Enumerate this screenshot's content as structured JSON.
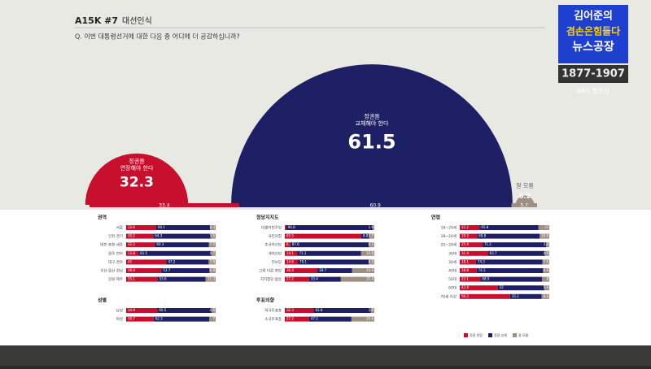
{
  "header": {
    "code": "A15K #7",
    "topic": "대선인식",
    "question": "Q. 이번 대통령선거에 대한 다음 중 어디에 더 공감하십니까?"
  },
  "logo": {
    "line1": "김어준의",
    "line2": "겸손은힘들다",
    "line3": "뉴스공장",
    "phone": "1877-1907",
    "method": "ARS 웹조사"
  },
  "chart_data": {
    "type": "semicircle",
    "categories": [
      "정권을\n연장해야 한다",
      "정권을\n교체해야 한다",
      "잘 모름"
    ],
    "values": [
      32.3,
      61.5,
      6.2
    ],
    "colors": [
      "#c8102e",
      "#1f1f66",
      "#9e8e84"
    ],
    "base_values": [
      33.4,
      60.9,
      5.7
    ]
  },
  "breakdown": {
    "legend": [
      "정권 연장",
      "정권 교체",
      "잘 모름"
    ],
    "groups": [
      {
        "title": "권역",
        "rows": [
          {
            "label": "서울",
            "values": [
              33.6,
              60.1,
              6.3
            ]
          },
          {
            "label": "인천·경기",
            "values": [
              30.2,
              64.3,
              5.5
            ]
          },
          {
            "label": "대전·충청·세종",
            "values": [
              32.2,
              60.3,
              7.5
            ]
          },
          {
            "label": "광주·전라",
            "values": [
              13.8,
              81.5,
              4.7
            ]
          },
          {
            "label": "대구·경북",
            "values": [
              45.0,
              47.2,
              7.8
            ]
          },
          {
            "label": "부산·울산·경남",
            "values": [
              39.4,
              53.7,
              6.9
            ]
          },
          {
            "label": "강원·제주",
            "values": [
              35.1,
              53.6,
              11.3
            ]
          }
        ]
      },
      {
        "title": "성별",
        "rows": [
          {
            "label": "남성",
            "values": [
              34.9,
              60.5,
              4.6
            ]
          },
          {
            "label": "여성",
            "values": [
              30.7,
              62.3,
              7.0
            ]
          }
        ]
      },
      {
        "title": "정당지지도",
        "rows": [
          {
            "label": "더불어민주당",
            "values": [
              1.6,
              96.8,
              1.6
            ]
          },
          {
            "label": "국민의힘",
            "values": [
              85.5,
              8.8,
              5.7
            ]
          },
          {
            "label": "조국혁신당",
            "values": [
              6.1,
              87.6,
              6.3
            ]
          },
          {
            "label": "개혁신당",
            "values": [
              14.1,
              71.1,
              14.8
            ]
          },
          {
            "label": "진보당",
            "values": [
              14.6,
              79.1,
              6.3
            ]
          },
          {
            "label": "그외 다른 정당",
            "values": [
              36.4,
              38.7,
              24.9
            ]
          },
          {
            "label": "지지정당 없음",
            "values": [
              27.2,
              35.4,
              37.4
            ]
          }
        ]
      },
      {
        "title": "투표의향",
        "rows": [
          {
            "label": "적극투표층",
            "values": [
              32.3,
              63.8,
              3.9
            ]
          },
          {
            "label": "소극투표층",
            "values": [
              27.2,
              47.2,
              25.6
            ]
          }
        ]
      },
      {
        "title": "연령",
        "rows": [
          {
            "label": "18~29세",
            "values": [
              22.2,
              65.8,
              12.0
            ]
          },
          {
            "label": "18~24세",
            "values": [
              19.3,
              69.8,
              10.9
            ]
          },
          {
            "label": "25~29세",
            "values": [
              25.4,
              71.2,
              3.4
            ]
          },
          {
            "label": "30대",
            "values": [
              31.4,
              63.7,
              4.9
            ]
          },
          {
            "label": "30세",
            "values": [
              18.1,
              74.3,
              7.6
            ]
          },
          {
            "label": "40대",
            "values": [
              18.8,
              74.3,
              6.9
            ]
          },
          {
            "label": "50대",
            "values": [
              23.1,
              68.9,
              8.0
            ]
          },
          {
            "label": "60대",
            "values": [
              42.4,
              52.0,
              5.6
            ]
          },
          {
            "label": "70세 이상",
            "values": [
              56.2,
              35.2,
              8.6
            ]
          }
        ]
      }
    ]
  }
}
